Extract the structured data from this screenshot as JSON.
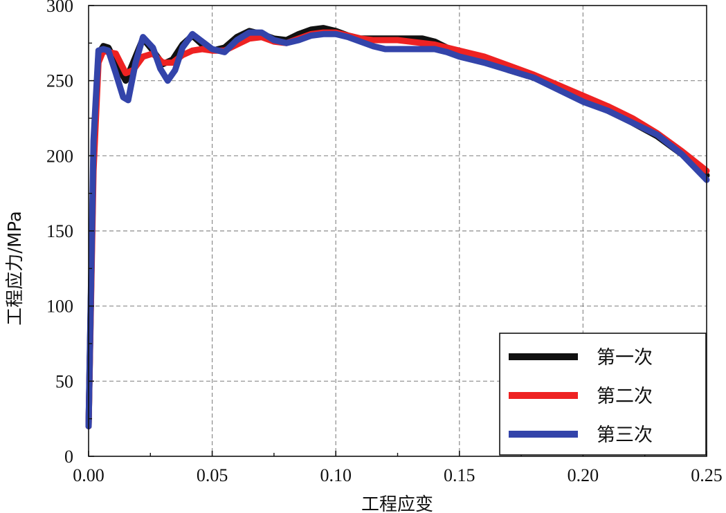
{
  "chart_data": {
    "type": "line",
    "title": "",
    "xlabel": "工程应变",
    "ylabel": "工程应力/MPa",
    "xlim": [
      0,
      0.25
    ],
    "ylim": [
      0,
      300
    ],
    "x_ticks": [
      "0.00",
      "0.05",
      "0.10",
      "0.15",
      "0.20",
      "0.25"
    ],
    "x_tick_values": [
      0,
      0.05,
      0.1,
      0.15,
      0.2,
      0.25
    ],
    "y_ticks": [
      "0",
      "50",
      "100",
      "150",
      "200",
      "250",
      "300"
    ],
    "y_tick_values": [
      0,
      50,
      100,
      150,
      200,
      250,
      300
    ],
    "grid": true,
    "legend_position": "bottom-right",
    "series": [
      {
        "name": "第一次",
        "color": "#111111",
        "x": [
          0.0,
          0.002,
          0.004,
          0.006,
          0.008,
          0.011,
          0.015,
          0.018,
          0.022,
          0.026,
          0.03,
          0.034,
          0.038,
          0.042,
          0.046,
          0.05,
          0.055,
          0.06,
          0.065,
          0.07,
          0.075,
          0.08,
          0.085,
          0.09,
          0.095,
          0.1,
          0.105,
          0.11,
          0.115,
          0.12,
          0.125,
          0.13,
          0.135,
          0.14,
          0.145,
          0.15,
          0.16,
          0.17,
          0.18,
          0.19,
          0.2,
          0.21,
          0.22,
          0.23,
          0.24,
          0.25
        ],
        "y": [
          20,
          200,
          268,
          273,
          272,
          262,
          250,
          262,
          278,
          270,
          261,
          264,
          274,
          280,
          274,
          270,
          272,
          279,
          283,
          281,
          278,
          277,
          281,
          284,
          285,
          283,
          280,
          278,
          278,
          278,
          278,
          278,
          278,
          276,
          272,
          269,
          264,
          257,
          252,
          245,
          237,
          230,
          222,
          213,
          201,
          187
        ]
      },
      {
        "name": "第二次",
        "color": "#ee2222",
        "x": [
          0.0,
          0.002,
          0.004,
          0.006,
          0.008,
          0.011,
          0.015,
          0.018,
          0.022,
          0.026,
          0.03,
          0.034,
          0.038,
          0.042,
          0.046,
          0.05,
          0.055,
          0.06,
          0.065,
          0.07,
          0.075,
          0.08,
          0.085,
          0.09,
          0.095,
          0.1,
          0.105,
          0.11,
          0.115,
          0.12,
          0.125,
          0.13,
          0.135,
          0.14,
          0.145,
          0.15,
          0.16,
          0.17,
          0.18,
          0.19,
          0.2,
          0.21,
          0.22,
          0.23,
          0.24,
          0.25
        ],
        "y": [
          20,
          190,
          262,
          270,
          269,
          268,
          255,
          257,
          266,
          268,
          262,
          262,
          267,
          270,
          271,
          270,
          270,
          274,
          278,
          279,
          276,
          275,
          278,
          281,
          282,
          282,
          280,
          278,
          277,
          277,
          277,
          276,
          275,
          274,
          272,
          270,
          266,
          260,
          254,
          247,
          240,
          233,
          225,
          215,
          203,
          190
        ]
      },
      {
        "name": "第三次",
        "color": "#3344aa",
        "x": [
          0.0,
          0.002,
          0.004,
          0.006,
          0.008,
          0.011,
          0.014,
          0.016,
          0.019,
          0.022,
          0.026,
          0.029,
          0.032,
          0.035,
          0.038,
          0.042,
          0.046,
          0.05,
          0.055,
          0.06,
          0.065,
          0.07,
          0.075,
          0.08,
          0.085,
          0.09,
          0.095,
          0.1,
          0.105,
          0.11,
          0.115,
          0.12,
          0.125,
          0.13,
          0.135,
          0.14,
          0.145,
          0.15,
          0.16,
          0.17,
          0.18,
          0.19,
          0.2,
          0.21,
          0.22,
          0.23,
          0.24,
          0.25
        ],
        "y": [
          20,
          210,
          270,
          271,
          270,
          255,
          239,
          237,
          262,
          279,
          272,
          258,
          250,
          257,
          272,
          281,
          276,
          271,
          269,
          277,
          282,
          282,
          277,
          275,
          277,
          280,
          281,
          281,
          279,
          276,
          273,
          271,
          271,
          271,
          271,
          271,
          269,
          266,
          262,
          257,
          252,
          244,
          236,
          230,
          222,
          214,
          201,
          184
        ]
      }
    ]
  }
}
